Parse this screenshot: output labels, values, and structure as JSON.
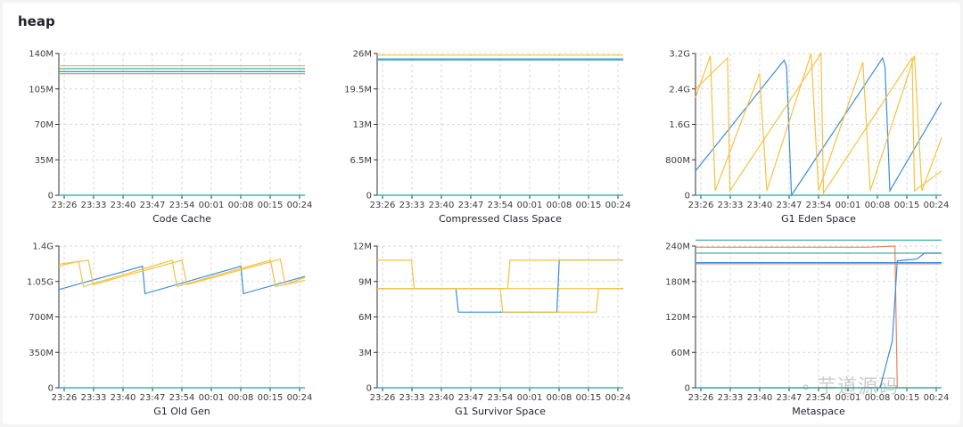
{
  "page": {
    "title": "heap"
  },
  "watermark": {
    "text": "芋道源码",
    "icon": "wechat-icon"
  },
  "colors": {
    "blue": "#3b8de0",
    "yellow": "#f5c242",
    "green": "#3cb4a0",
    "orange": "#e8845c"
  },
  "x_ticks": [
    "23:26",
    "23:33",
    "23:40",
    "23:47",
    "23:54",
    "00:01",
    "00:08",
    "00:15",
    "00:24"
  ],
  "chart_data": [
    {
      "type": "line",
      "title": "Code Cache",
      "ylabel": "",
      "yunit": "M",
      "ylim": [
        0,
        140
      ],
      "yticks": [
        0,
        35,
        70,
        105,
        140
      ],
      "ytick_labels": [
        "0",
        "35M",
        "70M",
        "105M",
        "140M"
      ],
      "series": [
        {
          "color": "yellow",
          "x": [
            0,
            100
          ],
          "y": [
            128,
            128
          ]
        },
        {
          "color": "green",
          "x": [
            0,
            100
          ],
          "y": [
            125,
            125
          ]
        },
        {
          "color": "blue",
          "x": [
            0,
            100
          ],
          "y": [
            122,
            122
          ]
        },
        {
          "color": "orange",
          "x": [
            0,
            100
          ],
          "y": [
            120,
            120
          ]
        },
        {
          "color": "green",
          "x": [
            0,
            100
          ],
          "y": [
            0,
            0
          ]
        }
      ]
    },
    {
      "type": "line",
      "title": "Compressed Class Space",
      "ylabel": "",
      "yunit": "M",
      "ylim": [
        0,
        26
      ],
      "yticks": [
        0,
        6.5,
        13,
        19.5,
        26
      ],
      "ytick_labels": [
        "0",
        "6.5M",
        "13M",
        "19.5M",
        "26M"
      ],
      "series": [
        {
          "color": "yellow",
          "x": [
            0,
            100
          ],
          "y": [
            25.7,
            25.7
          ]
        },
        {
          "color": "blue",
          "x": [
            0,
            100
          ],
          "y": [
            25.0,
            25.0
          ]
        },
        {
          "color": "green",
          "x": [
            0,
            100
          ],
          "y": [
            24.8,
            24.8
          ]
        },
        {
          "color": "green",
          "x": [
            0,
            100
          ],
          "y": [
            0,
            0
          ]
        }
      ]
    },
    {
      "type": "line",
      "title": "G1 Eden Space",
      "ylabel": "",
      "yunit": "G",
      "ylim": [
        0,
        3.2
      ],
      "yticks": [
        0,
        0.8,
        1.6,
        2.4,
        3.2
      ],
      "ytick_labels": [
        "0",
        "800M",
        "1.6G",
        "2.4G",
        "3.2G"
      ],
      "series": [
        {
          "color": "blue",
          "x": [
            0,
            36,
            37,
            39,
            76,
            77,
            79,
            100
          ],
          "y": [
            0.55,
            3.05,
            2.9,
            0,
            3.1,
            2.9,
            0.1,
            2.1
          ]
        },
        {
          "color": "yellow",
          "x": [
            0,
            6,
            8,
            26,
            29,
            47,
            50,
            68,
            71,
            89,
            92,
            100
          ],
          "y": [
            2.2,
            3.15,
            0.1,
            2.75,
            0.1,
            3.2,
            0.1,
            3.0,
            0.1,
            3.15,
            0.1,
            1.3
          ]
        },
        {
          "color": "yellow",
          "x": [
            0,
            13,
            14,
            51,
            52,
            88,
            89,
            100
          ],
          "y": [
            2.4,
            3.1,
            0.1,
            3.2,
            0.05,
            3.1,
            0.1,
            0.55
          ]
        },
        {
          "color": "green",
          "x": [
            0,
            100
          ],
          "y": [
            0,
            0
          ]
        }
      ]
    },
    {
      "type": "line",
      "title": "G1 Old Gen",
      "ylabel": "",
      "yunit": "G",
      "ylim": [
        0,
        1.4
      ],
      "yticks": [
        0,
        0.35,
        0.7,
        1.05,
        1.4
      ],
      "ytick_labels": [
        "0",
        "350M",
        "700M",
        "1.05G",
        "1.4G"
      ],
      "series": [
        {
          "color": "blue",
          "x": [
            0,
            34,
            35,
            74,
            75,
            100
          ],
          "y": [
            0.97,
            1.2,
            0.93,
            1.2,
            0.93,
            1.1
          ]
        },
        {
          "color": "yellow",
          "x": [
            0,
            8,
            10,
            46,
            48,
            86,
            88,
            100
          ],
          "y": [
            1.2,
            1.25,
            1.0,
            1.26,
            1.0,
            1.26,
            1.0,
            1.06
          ]
        },
        {
          "color": "yellow",
          "x": [
            0,
            12,
            14,
            50,
            52,
            90,
            92,
            100
          ],
          "y": [
            1.22,
            1.26,
            1.02,
            1.26,
            1.02,
            1.27,
            1.02,
            1.09
          ]
        },
        {
          "color": "green",
          "x": [
            0,
            100
          ],
          "y": [
            0,
            0
          ]
        }
      ]
    },
    {
      "type": "line",
      "title": "G1 Survivor Space",
      "ylabel": "",
      "yunit": "M",
      "ylim": [
        0,
        12
      ],
      "yticks": [
        0,
        3,
        6,
        9,
        12
      ],
      "ytick_labels": [
        "0",
        "3M",
        "6M",
        "9M",
        "12M"
      ],
      "series": [
        {
          "color": "yellow",
          "x": [
            0,
            14,
            15,
            100
          ],
          "y": [
            10.8,
            10.8,
            8.4,
            8.4
          ]
        },
        {
          "color": "blue",
          "x": [
            0,
            32,
            33,
            73,
            74,
            100
          ],
          "y": [
            8.4,
            8.4,
            6.4,
            6.4,
            10.8,
            10.8
          ]
        },
        {
          "color": "yellow",
          "x": [
            0,
            50,
            51,
            89,
            90,
            100
          ],
          "y": [
            8.4,
            8.4,
            6.4,
            6.4,
            8.4,
            8.4
          ]
        },
        {
          "color": "yellow",
          "x": [
            0,
            53,
            54,
            100
          ],
          "y": [
            8.4,
            8.4,
            10.8,
            10.8
          ]
        },
        {
          "color": "green",
          "x": [
            0,
            100
          ],
          "y": [
            0,
            0
          ]
        }
      ]
    },
    {
      "type": "line",
      "title": "Metaspace",
      "ylabel": "",
      "yunit": "M",
      "ylim": [
        0,
        240
      ],
      "yticks": [
        0,
        60,
        120,
        180,
        240
      ],
      "ytick_labels": [
        "0",
        "60M",
        "120M",
        "180M",
        "240M"
      ],
      "series": [
        {
          "color": "green",
          "x": [
            0,
            100
          ],
          "y": [
            250,
            250
          ]
        },
        {
          "color": "orange",
          "x": [
            0,
            70,
            81,
            82,
            100
          ],
          "y": [
            238,
            238,
            240,
            0,
            0
          ]
        },
        {
          "color": "green",
          "x": [
            0,
            100
          ],
          "y": [
            228,
            228
          ]
        },
        {
          "color": "blue",
          "x": [
            0,
            75,
            80,
            82,
            90,
            93,
            100
          ],
          "y": [
            0,
            0,
            80,
            215,
            218,
            228,
            228
          ]
        },
        {
          "color": "blue",
          "x": [
            0,
            100
          ],
          "y": [
            212,
            212
          ]
        },
        {
          "color": "orange",
          "x": [
            0,
            100
          ],
          "y": [
            210,
            210
          ]
        },
        {
          "color": "green",
          "x": [
            0,
            100
          ],
          "y": [
            0,
            0
          ]
        }
      ]
    }
  ]
}
